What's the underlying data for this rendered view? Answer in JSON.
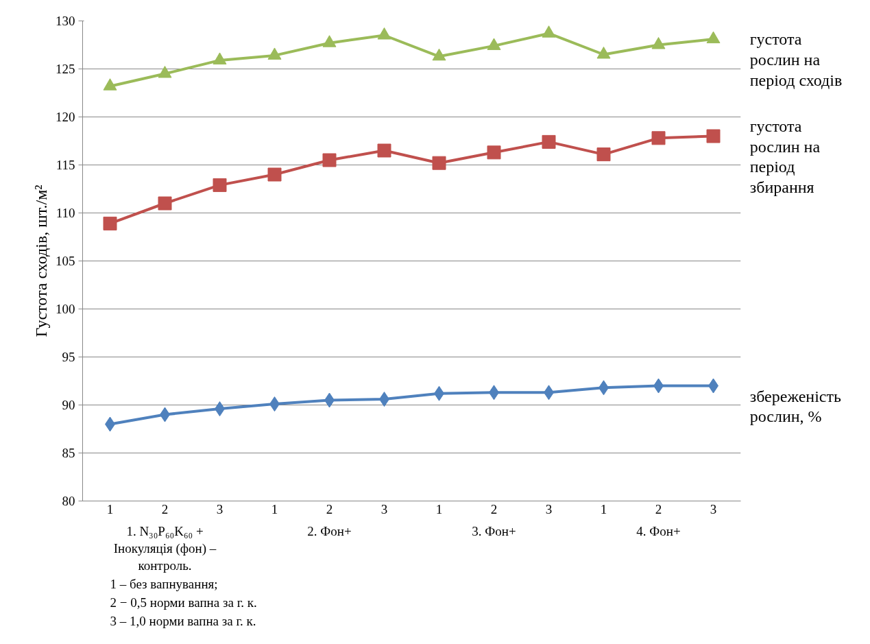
{
  "chart_data": {
    "type": "line",
    "ylabel": "Густота сходів, шт./м²",
    "categories": [
      "1",
      "2",
      "3",
      "1",
      "2",
      "3",
      "1",
      "2",
      "3",
      "1",
      "2",
      "3"
    ],
    "ylim": [
      80,
      130
    ],
    "yticks": [
      80,
      85,
      90,
      95,
      100,
      105,
      110,
      115,
      120,
      125,
      130
    ],
    "grid": "y",
    "legend": false,
    "line_style": "solid",
    "series": [
      {
        "name": "густота рослин на період сходів",
        "color": "#9bbb59",
        "marker": "triangle",
        "values": [
          123.2,
          124.5,
          125.9,
          126.4,
          127.7,
          128.5,
          126.3,
          127.4,
          128.7,
          126.5,
          127.5,
          128.1
        ]
      },
      {
        "name": "густота рослин на період збирання",
        "color": "#c0504d",
        "marker": "square",
        "values": [
          108.9,
          111.0,
          112.9,
          114.0,
          115.5,
          116.5,
          115.2,
          116.3,
          117.4,
          116.1,
          117.8,
          118.0
        ]
      },
      {
        "name": "збереженість рослин, %",
        "color": "#4f81bd",
        "marker": "diamond",
        "values": [
          88.0,
          89.0,
          89.6,
          90.1,
          90.5,
          90.6,
          91.2,
          91.3,
          91.3,
          91.8,
          92.0,
          92.0
        ]
      }
    ],
    "annotations": [
      "1. N₃₀P₆₀K₆₀ + Інокуляція (фон) – контроль.",
      "2. Фон+",
      "3. Фон+",
      "4. Фон+",
      "1 – без вапнування;",
      "2 − 0,5 норми вапна за г. к.",
      "3 – 1,0 норми вапна за г. к."
    ]
  }
}
